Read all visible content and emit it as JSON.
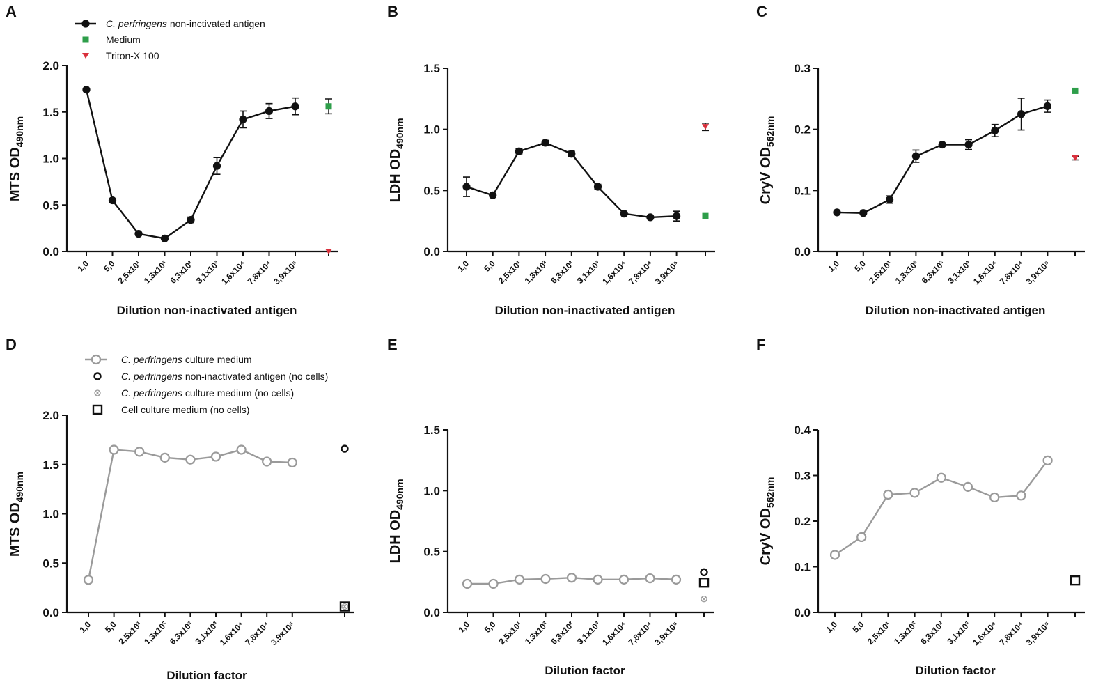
{
  "chart_data": [
    {
      "panel": "A",
      "type": "line",
      "ylabel": {
        "main": "MTS OD",
        "sub": "490nm"
      },
      "xlabel": "Dilution non-inactivated antigen",
      "ylim": [
        0,
        2.0
      ],
      "yticks": [
        "0.0",
        "0.5",
        "1.0",
        "1.5",
        "2.0"
      ],
      "categories": [
        "1,0",
        "5,0",
        "2,5x10¹",
        "1,3x10²",
        "6,3x10²",
        "3,1x10³",
        "1,6x10⁴",
        "7,8x10⁴",
        "3,9x10⁵"
      ],
      "series": [
        {
          "name": "C. perfringens non-inctivated antigen",
          "style": "filled-black",
          "values": [
            1.74,
            0.55,
            0.19,
            0.14,
            0.34,
            0.92,
            1.42,
            1.51,
            1.56
          ],
          "errors": [
            0,
            0,
            0,
            0,
            0.03,
            0.09,
            0.09,
            0.08,
            0.09
          ]
        }
      ],
      "controls": [
        {
          "name": "Medium",
          "marker": "square",
          "color": "#2e9e4a",
          "value": 1.56,
          "error": 0.08
        },
        {
          "name": "Triton-X 100",
          "marker": "triangle-down",
          "color": "#d9303c",
          "value": 0.0,
          "error": 0
        }
      ],
      "legend": {
        "entries": [
          {
            "italic": "C. perfringens",
            "text": " non-inctivated antigen",
            "marker": "line-filled"
          },
          {
            "italic": "",
            "text": "Medium",
            "marker": "square-green"
          },
          {
            "italic": "",
            "text": "Triton-X 100",
            "marker": "triangle-red"
          }
        ]
      }
    },
    {
      "panel": "B",
      "type": "line",
      "ylabel": {
        "main": "LDH OD",
        "sub": "490nm"
      },
      "xlabel": "Dilution non-inactivated antigen",
      "ylim": [
        0,
        1.5
      ],
      "yticks": [
        "0.0",
        "0.5",
        "1.0",
        "1.5"
      ],
      "categories": [
        "1,0",
        "5,0",
        "2,5x10¹",
        "1,3x10²",
        "6,3x10²",
        "3,1x10³",
        "1,6x10⁴",
        "7,8x10⁴",
        "3,9x10⁵"
      ],
      "series": [
        {
          "name": "C. perfringens non-inctivated antigen",
          "style": "filled-black",
          "values": [
            0.53,
            0.46,
            0.82,
            0.89,
            0.8,
            0.53,
            0.31,
            0.28,
            0.29
          ],
          "errors": [
            0.08,
            0,
            0.02,
            0.02,
            0.02,
            0.02,
            0,
            0,
            0.04
          ]
        }
      ],
      "controls": [
        {
          "name": "Triton-X 100",
          "marker": "triangle-down",
          "color": "#d9303c",
          "value": 1.02,
          "error": 0.03
        },
        {
          "name": "Medium",
          "marker": "square",
          "color": "#2e9e4a",
          "value": 0.29,
          "error": 0
        }
      ]
    },
    {
      "panel": "C",
      "type": "line",
      "ylabel": {
        "main": "CryV OD",
        "sub": "562nm"
      },
      "xlabel": "Dilution non-inactivated antigen",
      "ylim": [
        0,
        0.3
      ],
      "yticks": [
        "0.0",
        "0.1",
        "0.2",
        "0.3"
      ],
      "categories": [
        "1,0",
        "5,0",
        "2,5x10¹",
        "1,3x10²",
        "6,3x10²",
        "3,1x10³",
        "1,6x10⁴",
        "7,8x10⁴",
        "3,9x10⁵"
      ],
      "series": [
        {
          "name": "C. perfringens non-inctivated antigen",
          "style": "filled-black",
          "values": [
            0.064,
            0.063,
            0.085,
            0.156,
            0.175,
            0.175,
            0.198,
            0.225,
            0.238
          ],
          "errors": [
            0,
            0,
            0.006,
            0.01,
            0,
            0.008,
            0.01,
            0.026,
            0.01
          ]
        }
      ],
      "controls": [
        {
          "name": "Medium",
          "marker": "square",
          "color": "#2e9e4a",
          "value": 0.263,
          "error": 0
        },
        {
          "name": "Triton-X 100",
          "marker": "triangle-down",
          "color": "#d9303c",
          "value": 0.153,
          "error": 0.003
        }
      ]
    },
    {
      "panel": "D",
      "type": "line",
      "ylabel": {
        "main": "MTS OD",
        "sub": "490nm"
      },
      "xlabel": "Dilution factor",
      "ylim": [
        0,
        2.0
      ],
      "yticks": [
        "0.0",
        "0.5",
        "1.0",
        "1.5",
        "2.0"
      ],
      "categories": [
        "1,0",
        "5,0",
        "2,5x10¹",
        "1,3x10²",
        "6,3x10²",
        "3,1x10³",
        "1,6x10⁴",
        "7,8x10⁴",
        "3,9x10⁵"
      ],
      "series": [
        {
          "name": "C. perfringens culture medium",
          "style": "open-grey",
          "values": [
            0.33,
            1.65,
            1.63,
            1.57,
            1.55,
            1.58,
            1.65,
            1.53,
            1.52
          ]
        }
      ],
      "controls": [
        {
          "name": "C. perfringens non-inactivated antigen (no cells)",
          "marker": "circle-open",
          "color": "#111111",
          "value": 1.66
        },
        {
          "name": "Cell culture medium (no cells)",
          "marker": "square-open",
          "color": "#111111",
          "value": 0.06
        },
        {
          "name": "C. perfringens culture medium (no cells)",
          "marker": "circle-x",
          "color": "#9a9a9a",
          "value": 0.06
        }
      ],
      "legend": {
        "entries": [
          {
            "italic": "C. perfringens",
            "text": " culture medium",
            "marker": "line-open"
          },
          {
            "italic": "C. perfringens",
            "text": " non-inactivated antigen (no cells)",
            "marker": "circle-open"
          },
          {
            "italic": "C. perfringens",
            "text": " culture medium (no cells)",
            "marker": "circle-x"
          },
          {
            "italic": "",
            "text": "Cell culture medium (no cells)",
            "marker": "square-open"
          }
        ]
      }
    },
    {
      "panel": "E",
      "type": "line",
      "ylabel": {
        "main": "LDH OD",
        "sub": "490nm"
      },
      "xlabel": "Dilution factor",
      "ylim": [
        0,
        1.5
      ],
      "yticks": [
        "0.0",
        "0.5",
        "1.0",
        "1.5"
      ],
      "categories": [
        "1,0",
        "5,0",
        "2,5x10¹",
        "1,3x10²",
        "6,3x10²",
        "3,1x10³",
        "1,6x10⁴",
        "7,8x10⁴",
        "3,9x10⁵"
      ],
      "series": [
        {
          "name": "C. perfringens culture medium",
          "style": "open-grey",
          "values": [
            0.235,
            0.235,
            0.27,
            0.275,
            0.285,
            0.27,
            0.27,
            0.28,
            0.27
          ]
        }
      ],
      "controls": [
        {
          "name": "C. perfringens non-inactivated antigen (no cells)",
          "marker": "circle-open",
          "color": "#111111",
          "value": 0.33
        },
        {
          "name": "Cell culture medium (no cells)",
          "marker": "square-open",
          "color": "#111111",
          "value": 0.245
        },
        {
          "name": "C. perfringens culture medium (no cells)",
          "marker": "circle-x",
          "color": "#9a9a9a",
          "value": 0.11
        }
      ]
    },
    {
      "panel": "F",
      "type": "line",
      "ylabel": {
        "main": "CryV OD",
        "sub": "562nm"
      },
      "xlabel": "Dilution factor",
      "ylim": [
        0,
        0.4
      ],
      "yticks": [
        "0.0",
        "0.1",
        "0.2",
        "0.3",
        "0.4"
      ],
      "categories": [
        "1,0",
        "5,0",
        "2,5x10¹",
        "1,3x10²",
        "6,3x10²",
        "3,1x10³",
        "1,6x10⁴",
        "7,8x10⁴",
        "3,9x10⁵"
      ],
      "series": [
        {
          "name": "C. perfringens culture medium",
          "style": "open-grey",
          "values": [
            0.126,
            0.165,
            0.258,
            0.262,
            0.295,
            0.275,
            0.252,
            0.256,
            0.333
          ]
        }
      ],
      "controls": [
        {
          "name": "Cell culture medium (no cells)",
          "marker": "square-open",
          "color": "#111111",
          "value": 0.07
        }
      ]
    }
  ]
}
